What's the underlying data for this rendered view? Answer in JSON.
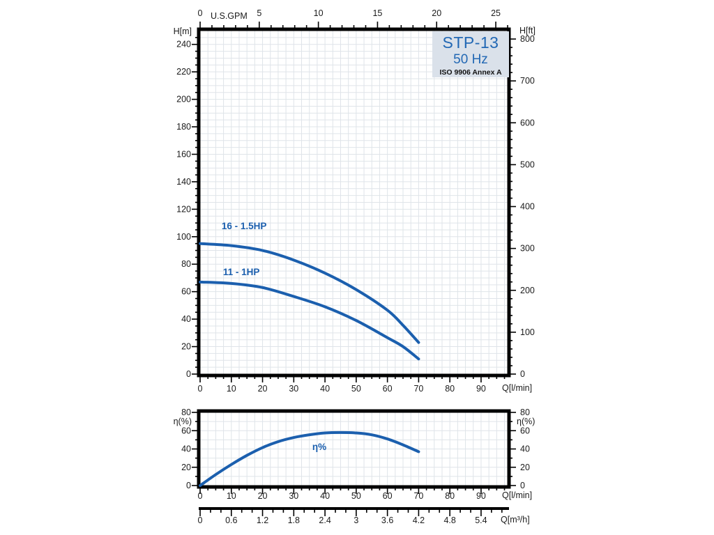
{
  "colors": {
    "curve_blue": "#1b5fae",
    "title_blue": "#2268b4",
    "title_box_bg": "#dae1ea",
    "grid": "#dfe4e9",
    "axis": "#000000",
    "text": "#1a1a1a"
  },
  "title_box": {
    "model": "STP-13",
    "frequency": "50 Hz",
    "standard": "ISO 9906 Annex A"
  },
  "chart_data": [
    {
      "id": "head-flow",
      "type": "line",
      "title": "STP-13 50 Hz pump head curves",
      "axes": {
        "top": {
          "label": "U.S.GPM",
          "min": 0,
          "max": 26,
          "major_ticks": [
            0,
            5,
            10,
            15,
            20,
            25
          ],
          "minor_step": 1
        },
        "bottom": {
          "label": "Q[l/min]",
          "min": 0,
          "max": 98.5,
          "major_ticks": [
            0,
            10,
            20,
            30,
            40,
            50,
            60,
            70,
            80,
            90
          ],
          "minor_step": 2.5
        },
        "left": {
          "label": "H[m]",
          "min": 0,
          "max": 250,
          "major_ticks": [
            0,
            20,
            40,
            60,
            80,
            100,
            120,
            140,
            160,
            180,
            200,
            220,
            240
          ],
          "minor_step": 5
        },
        "right": {
          "label": "H[ft]",
          "min": 0,
          "max": 820,
          "major_ticks": [
            0,
            100,
            200,
            300,
            400,
            500,
            600,
            700,
            800
          ],
          "minor_step": 20
        }
      },
      "grid": {
        "x_step": 2.5,
        "y_step": 5
      },
      "series": [
        {
          "name": "16 - 1.5HP",
          "x": [
            0,
            10,
            20,
            30,
            40,
            50,
            60,
            65,
            70
          ],
          "y": [
            95,
            93.5,
            90,
            83,
            73.5,
            61.5,
            46.5,
            35.5,
            23
          ],
          "label_at": {
            "x": 14.1,
            "y": 105.5
          }
        },
        {
          "name": "11 - 1HP",
          "x": [
            0,
            10,
            20,
            30,
            40,
            50,
            60,
            65,
            70
          ],
          "y": [
            67,
            66,
            63,
            56.5,
            49,
            39,
            26.5,
            20,
            11
          ],
          "label_at": {
            "x": 13.2,
            "y": 72
          }
        }
      ]
    },
    {
      "id": "efficiency",
      "type": "line",
      "title": "Efficiency curve",
      "axes": {
        "bottom": {
          "label": "Q[l/min]",
          "min": 0,
          "max": 98.5,
          "major_ticks": [
            0,
            10,
            20,
            30,
            40,
            50,
            60,
            70,
            80,
            90
          ],
          "minor_step": 2.5
        },
        "left": {
          "label": "η(%)",
          "min": 0,
          "max": 80,
          "major_ticks": [
            0,
            20,
            40,
            60,
            80
          ],
          "minor_step": 10
        },
        "right": {
          "label": "η(%)",
          "min": 0,
          "max": 80,
          "major_ticks": [
            0,
            20,
            40,
            60,
            80
          ],
          "minor_step": 10
        },
        "sub": {
          "label": "Q[m³/h]",
          "min": 0,
          "max": 5.91,
          "major_ticks": [
            0,
            0.6,
            1.2,
            1.8,
            2.4,
            3,
            3.6,
            4.2,
            4.8,
            5.4
          ],
          "minor_step": 0.2
        }
      },
      "grid": {
        "x_step": 2.5,
        "y_step": 10
      },
      "series": [
        {
          "name": "η%",
          "x": [
            0,
            5,
            10,
            15,
            20,
            25,
            30,
            35,
            40,
            45,
            50,
            55,
            60,
            65,
            70
          ],
          "y": [
            0,
            12,
            23,
            33,
            41.5,
            48,
            52.5,
            55.5,
            57.5,
            58,
            57.5,
            55.5,
            51,
            44.5,
            37
          ],
          "label_at": {
            "x": 38.2,
            "y": 39
          }
        }
      ]
    }
  ]
}
